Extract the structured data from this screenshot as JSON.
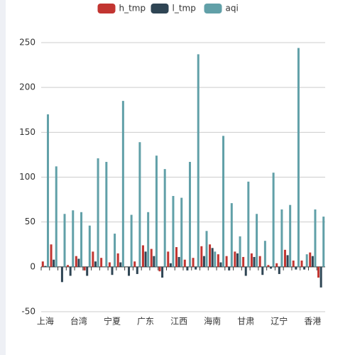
{
  "chart_data": {
    "type": "bar",
    "categories": [
      "上海",
      null,
      null,
      null,
      "台湾",
      null,
      null,
      null,
      "宁夏",
      null,
      null,
      null,
      "广东",
      null,
      null,
      null,
      "江西",
      null,
      null,
      null,
      "海南",
      null,
      null,
      null,
      "甘肃",
      null,
      null,
      null,
      "辽宁",
      null,
      null,
      null,
      "香港",
      null
    ],
    "series": [
      {
        "name": "h_tmp",
        "color": "#c23531",
        "values": [
          6,
          25,
          0,
          2,
          12,
          -4,
          17,
          10,
          5,
          15,
          0,
          6,
          24,
          20,
          -5,
          17,
          22,
          8,
          10,
          23,
          25,
          14,
          12,
          17,
          11,
          15,
          12,
          2,
          4,
          19,
          7,
          7,
          16,
          -12
        ]
      },
      {
        "name": "l_tmp",
        "color": "#2f4554",
        "values": [
          1,
          8,
          -17,
          -10,
          9,
          -10,
          6,
          0,
          -9,
          5,
          -10,
          -8,
          17,
          12,
          -12,
          4,
          11,
          -4,
          -3,
          12,
          21,
          5,
          -4,
          15,
          -10,
          11,
          -9,
          -2,
          -8,
          13,
          -3,
          -3,
          12,
          -23
        ]
      },
      {
        "name": "aqi",
        "color": "#61a0a8",
        "values": [
          170,
          112,
          59,
          63,
          61,
          46,
          121,
          117,
          37,
          185,
          58,
          139,
          61,
          124,
          109,
          79,
          77,
          117,
          237,
          40,
          17,
          146,
          71,
          34,
          95,
          59,
          29,
          105,
          64,
          69,
          244,
          14,
          64,
          56
        ]
      }
    ],
    "ylim": [
      -50,
      250
    ],
    "yticks": [
      -50,
      0,
      50,
      100,
      150,
      200,
      250
    ],
    "grid": true
  }
}
